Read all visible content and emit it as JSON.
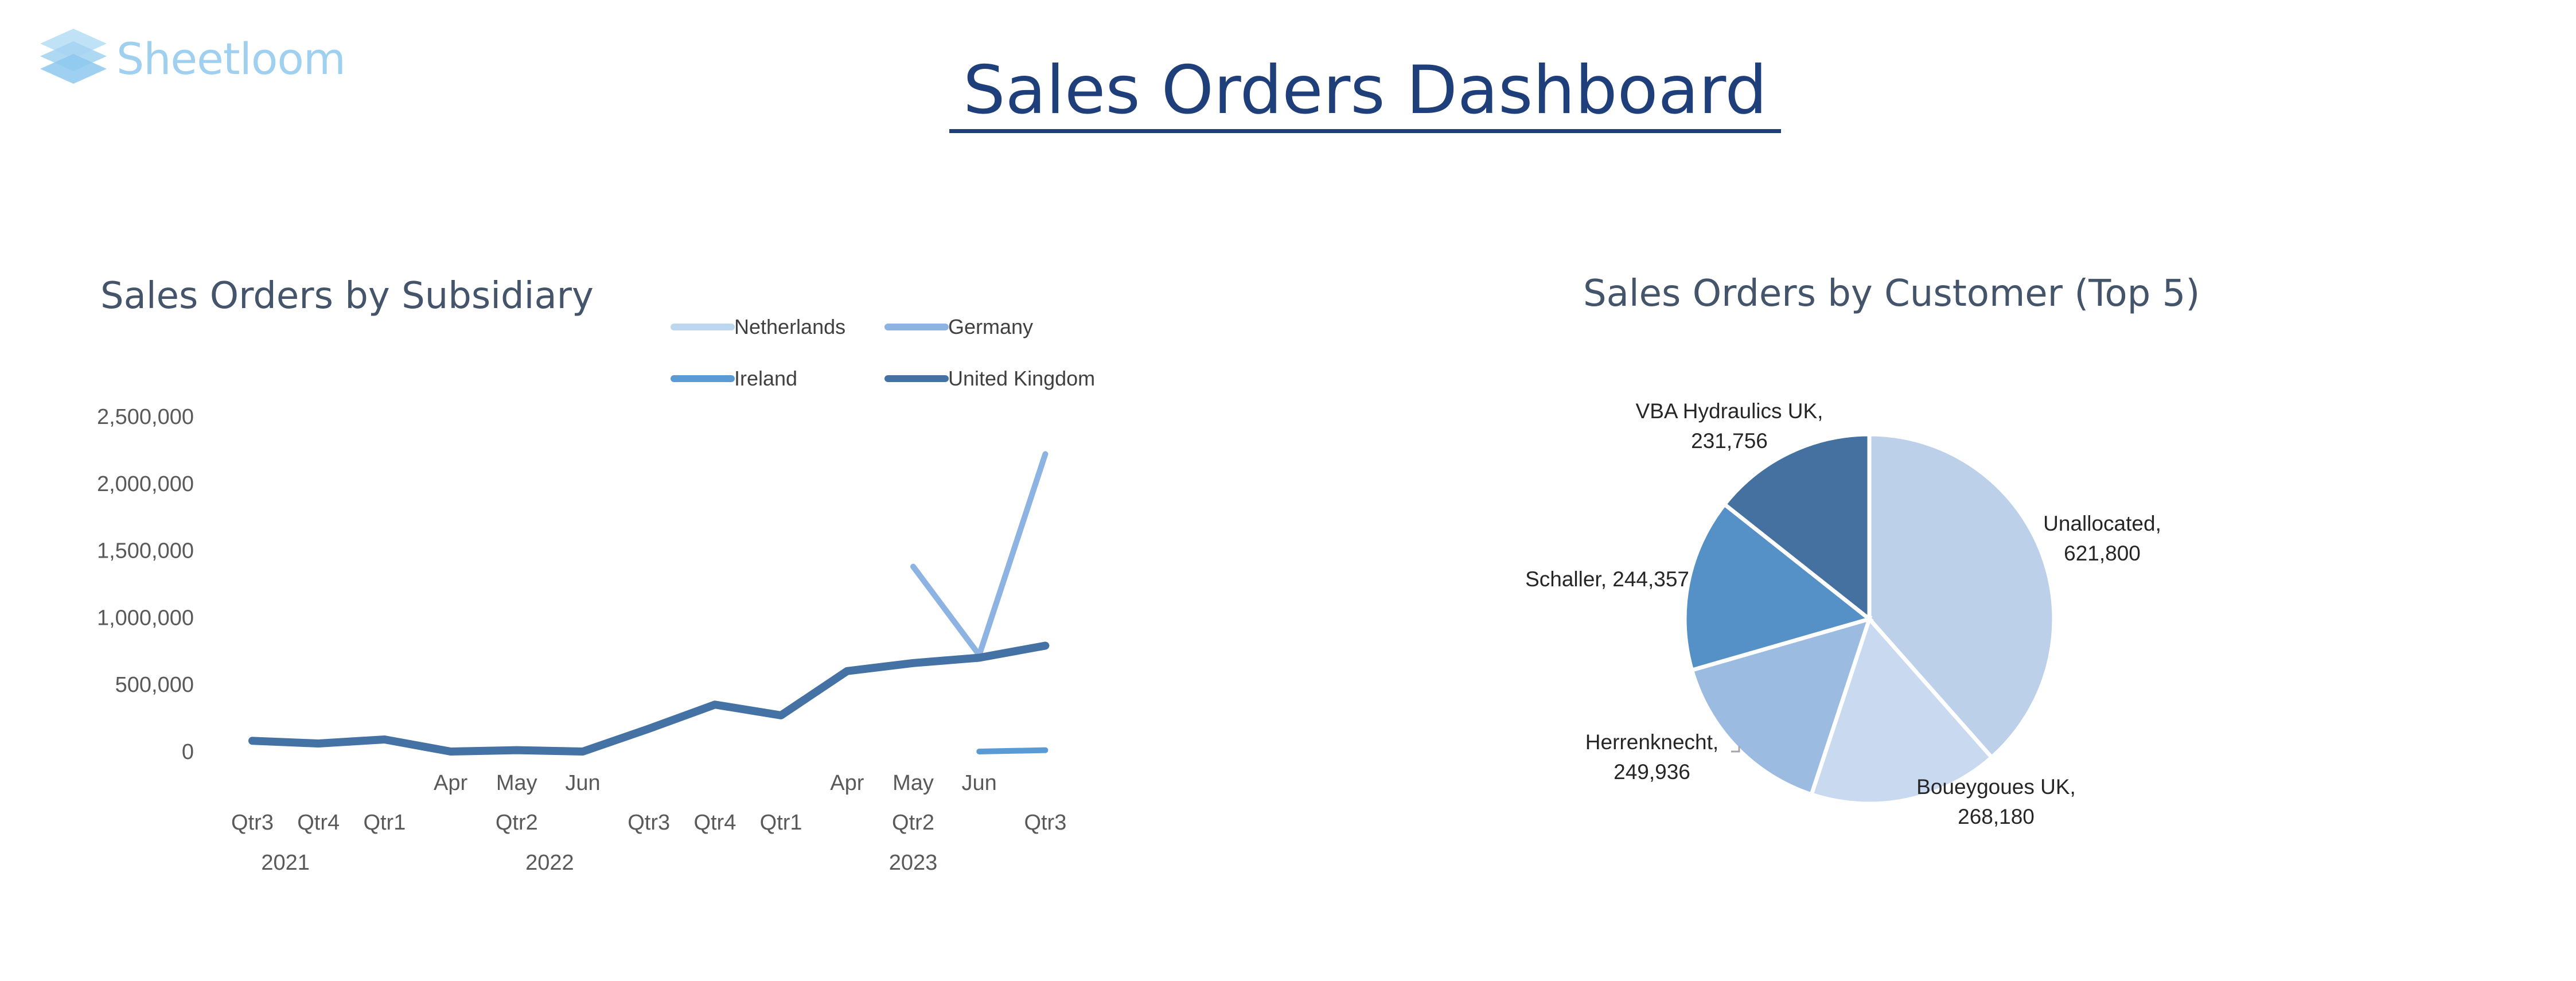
{
  "brand": {
    "name": "Sheetloom",
    "color": "#9fd0f0",
    "icon": "stacked-layers-logo"
  },
  "dashboard": {
    "title": "Sales Orders Dashboard",
    "title_color": "#1f3f7a"
  },
  "chart_data": [
    {
      "type": "line",
      "title": "Sales Orders by Subsidiary",
      "xlabel": "",
      "ylabel": "",
      "ylim": [
        0,
        2500000
      ],
      "yticks": [
        "2,500,000",
        "2,000,000",
        "1,500,000",
        "1,000,000",
        "500,000",
        "0"
      ],
      "grid": false,
      "legend_position": "top",
      "categories": [
        {
          "label": "Qtr3",
          "period": "2021"
        },
        {
          "label": "Qtr4",
          "period": "2021"
        },
        {
          "label": "Qtr1",
          "period": "2022"
        },
        {
          "label": "Apr",
          "period": "2022"
        },
        {
          "label": "May",
          "period": "2022"
        },
        {
          "label": "Jun",
          "period": "2022"
        },
        {
          "label": "Qtr3",
          "period": "2022"
        },
        {
          "label": "Qtr4",
          "period": "2022"
        },
        {
          "label": "Qtr1",
          "period": "2023"
        },
        {
          "label": "Apr",
          "period": "2023"
        },
        {
          "label": "May",
          "period": "2023"
        },
        {
          "label": "Jun",
          "period": "2023"
        },
        {
          "label": "Qtr3",
          "period": "2023"
        }
      ],
      "axis_rows": {
        "upper": [
          "",
          "",
          "",
          "Apr",
          "May",
          "Jun",
          "",
          "",
          "",
          "Apr",
          "May",
          "Jun",
          ""
        ],
        "lower": [
          "Qtr3",
          "Qtr4",
          "Qtr1",
          "",
          "Qtr2",
          "",
          "Qtr3",
          "Qtr4",
          "Qtr1",
          "",
          "Qtr2",
          "",
          "Qtr3"
        ],
        "years": [
          {
            "label": "2021",
            "index": 0.5
          },
          {
            "label": "2022",
            "index": 4.5
          },
          {
            "label": "2023",
            "index": 10
          }
        ]
      },
      "series": [
        {
          "name": "Netherlands",
          "color": "#bdd7ee",
          "values": [
            null,
            null,
            null,
            null,
            null,
            null,
            null,
            null,
            null,
            null,
            null,
            null,
            null
          ]
        },
        {
          "name": "Germany",
          "color": "#8db3e2",
          "values": [
            null,
            null,
            null,
            null,
            null,
            null,
            null,
            null,
            null,
            null,
            1380000,
            720000,
            2220000
          ]
        },
        {
          "name": "Ireland",
          "color": "#5b9bd5",
          "values": [
            null,
            null,
            null,
            null,
            null,
            null,
            null,
            null,
            null,
            null,
            null,
            0,
            10000
          ]
        },
        {
          "name": "United Kingdom",
          "color": "#4472a4",
          "values": [
            80000,
            60000,
            90000,
            0,
            10000,
            0,
            170000,
            350000,
            270000,
            600000,
            660000,
            700000,
            790000
          ]
        }
      ]
    },
    {
      "type": "pie",
      "title": "Sales Orders by Customer  (Top 5)",
      "slices": [
        {
          "label": "Unallocated",
          "display": "621,800",
          "value": 621800,
          "color": "#bdd0ea"
        },
        {
          "label": "Boueygoues UK",
          "display": "268,180",
          "value": 268180,
          "color": "#c9d9ef"
        },
        {
          "label": "Herrenknecht",
          "display": "249,936",
          "value": 249936,
          "color": "#9cbbe1"
        },
        {
          "label": "Schaller",
          "display": "244,357",
          "value": 244357,
          "color": "#5590c6"
        },
        {
          "label": "VBA Hydraulics UK",
          "display": "231,756",
          "value": 231756,
          "color": "#44719f"
        }
      ]
    }
  ]
}
